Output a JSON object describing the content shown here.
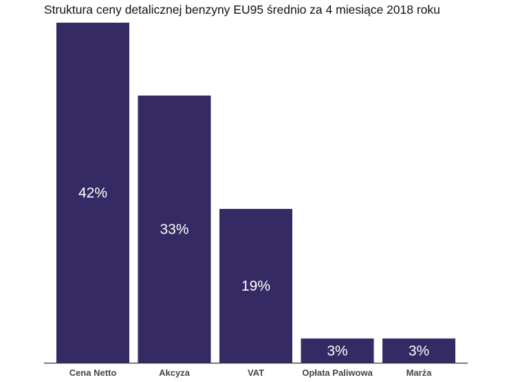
{
  "chart_data": {
    "type": "bar",
    "title": "Struktura ceny detalicznej benzyny EU95 średnio za 4 miesiące 2018 roku",
    "categories": [
      "Cena Netto",
      "Akcyza",
      "VAT",
      "Opłata Paliwowa",
      "Marża"
    ],
    "values": [
      42,
      33,
      19,
      3,
      3
    ],
    "value_labels": [
      "42%",
      "33%",
      "19%",
      "3%",
      "3%"
    ],
    "xlabel": "",
    "ylabel": "",
    "ylim": [
      0,
      42
    ],
    "bar_color": "#352a63",
    "grid": false,
    "legend": "none"
  }
}
